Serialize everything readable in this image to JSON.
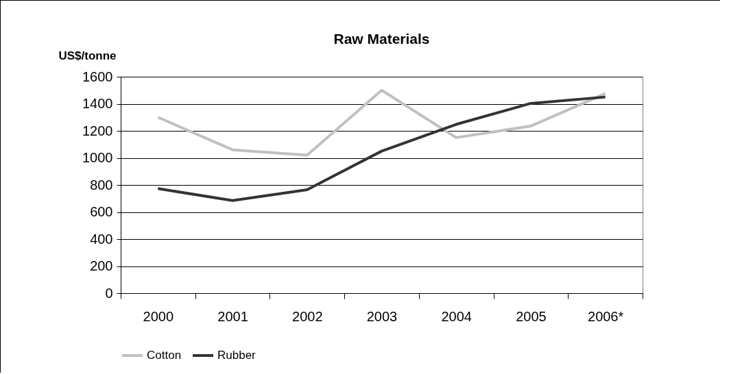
{
  "chart_data": {
    "type": "line",
    "title": "Raw Materials",
    "ylabel": "US$/tonne",
    "categories": [
      "2000",
      "2001",
      "2002",
      "2003",
      "2004",
      "2005",
      "2006*"
    ],
    "series": [
      {
        "name": "Cotton",
        "color": "#c0c0c0",
        "values": [
          1300,
          1060,
          1020,
          1500,
          1150,
          1235,
          1475
        ]
      },
      {
        "name": "Rubber",
        "color": "#333333",
        "values": [
          773,
          685,
          765,
          1050,
          1248,
          1403,
          1450
        ]
      }
    ],
    "ylim": [
      0,
      1600
    ],
    "yticks": [
      0,
      200,
      400,
      600,
      800,
      1000,
      1200,
      1400,
      1600
    ],
    "grid": "y",
    "legend": "bottom",
    "marker": "none",
    "line_style": "solid"
  }
}
